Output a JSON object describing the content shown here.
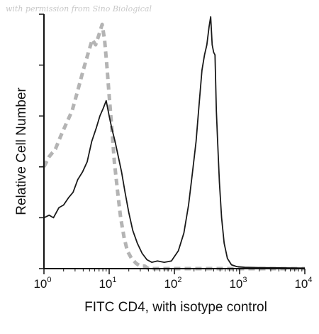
{
  "watermark": "with permission from Sino Biological",
  "chart_data": {
    "type": "line",
    "title": "",
    "xlabel": "FITC CD4, with isotype control",
    "ylabel": "Relative Cell Number",
    "x_scale": "log",
    "xlim": [
      1,
      10000
    ],
    "ylim": [
      0,
      1.0
    ],
    "x_ticks": [
      {
        "base": "10",
        "exp": "0",
        "value": 1
      },
      {
        "base": "10",
        "exp": "1",
        "value": 10
      },
      {
        "base": "10",
        "exp": "2",
        "value": 100
      },
      {
        "base": "10",
        "exp": "3",
        "value": 1000
      },
      {
        "base": "10",
        "exp": "4",
        "value": 10000
      }
    ],
    "y_ticks": [
      0,
      0.2,
      0.4,
      0.6,
      0.8,
      1.0
    ],
    "grid": false,
    "series": [
      {
        "style": "dashed-gray",
        "color": "#b4b4b4",
        "x": [
          1.0,
          1.2,
          1.5,
          1.8,
          2.2,
          2.7,
          3.3,
          4.0,
          4.8,
          5.5,
          6.2,
          7.0,
          7.8,
          8.5,
          9.2,
          10.0,
          11.0,
          12.0,
          13.5,
          15.0,
          17.0,
          19.0,
          22.0,
          26.0,
          30.0,
          35.0,
          40.0,
          50.0,
          70.0,
          100.0,
          200.0,
          500.0,
          1000.0,
          3000.0,
          10000.0
        ],
        "y": [
          0.4,
          0.44,
          0.47,
          0.52,
          0.57,
          0.62,
          0.7,
          0.78,
          0.85,
          0.9,
          0.88,
          0.92,
          0.96,
          0.9,
          0.8,
          0.68,
          0.55,
          0.42,
          0.3,
          0.2,
          0.12,
          0.07,
          0.04,
          0.02,
          0.01,
          0.01,
          0.0,
          0.0,
          0.0,
          0.0,
          0.0,
          0.0,
          0.0,
          0.0,
          0.0
        ]
      },
      {
        "style": "solid-black",
        "color": "#1a1a1a",
        "x": [
          1.0,
          1.2,
          1.4,
          1.7,
          2.0,
          2.4,
          2.8,
          3.3,
          3.9,
          4.6,
          5.4,
          6.3,
          7.2,
          8.1,
          9.0,
          10.0,
          11.0,
          12.3,
          13.8,
          15.5,
          17.5,
          20.0,
          23.0,
          27.0,
          32.0,
          38.0,
          45.0,
          55.0,
          70.0,
          90.0,
          115.0,
          140.0,
          165.0,
          190.0,
          215.0,
          240.0,
          265.0,
          290.0,
          315.0,
          340.0,
          360.0,
          380.0,
          400.0,
          420.0,
          440.0,
          460.0,
          490.0,
          530.0,
          580.0,
          650.0,
          750.0,
          900.0,
          1200.0,
          2000.0,
          4000.0,
          10000.0
        ],
        "y": [
          0.2,
          0.21,
          0.2,
          0.24,
          0.25,
          0.28,
          0.3,
          0.35,
          0.38,
          0.42,
          0.5,
          0.55,
          0.6,
          0.63,
          0.66,
          0.6,
          0.55,
          0.5,
          0.44,
          0.38,
          0.3,
          0.22,
          0.15,
          0.1,
          0.06,
          0.035,
          0.025,
          0.03,
          0.025,
          0.03,
          0.07,
          0.14,
          0.25,
          0.38,
          0.5,
          0.65,
          0.78,
          0.84,
          0.88,
          0.95,
          0.99,
          0.88,
          0.85,
          0.84,
          0.62,
          0.5,
          0.34,
          0.2,
          0.1,
          0.04,
          0.015,
          0.008,
          0.005,
          0.004,
          0.003,
          0.002
        ]
      }
    ]
  }
}
